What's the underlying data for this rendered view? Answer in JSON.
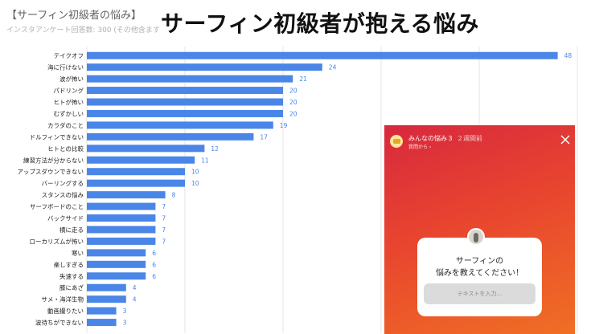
{
  "header": {
    "chart_title": "【サーフィン初級者の悩み】",
    "subtitle": "インスタアンケート回答数: 300 (その他含ます",
    "overlay_title": "サーフィン初級者が抱える悩み"
  },
  "story": {
    "name": "みんなの悩み３",
    "time": "２週間前",
    "from": "質問から ›",
    "question": "サーフィンの\n悩みを教えてください！",
    "answer_placeholder": "テキストを入力..."
  },
  "colors": {
    "bar": "#4a86e8",
    "value_label": "#4a86e8",
    "grid": "#e6e6e6",
    "axis_text": "#666666",
    "category_text": "#222222"
  },
  "chart_data": {
    "type": "bar",
    "orientation": "horizontal",
    "title": "【サーフィン初級者の悩み】",
    "categories": [
      "テイクオフ",
      "海に行けない",
      "波が怖い",
      "パドリング",
      "ヒトが怖い",
      "むずかしい",
      "カラダのこと",
      "ドルフィンできない",
      "ヒトとの比較",
      "練習方法が分からない",
      "アップスダウンできない",
      "バーリングする",
      "スタンスの悩み",
      "サーフボードのこと",
      "バックサイド",
      "横に走る",
      "ローカリズムが怖い",
      "寒い",
      "楽しすぎる",
      "失速する",
      "膝にあざ",
      "サメ・海洋生物",
      "動画撮りたい",
      "波待ちができない"
    ],
    "values": [
      48,
      24,
      21,
      20,
      20,
      20,
      19,
      17,
      12,
      11,
      10,
      10,
      8,
      7,
      7,
      7,
      7,
      6,
      6,
      6,
      4,
      4,
      3,
      3
    ],
    "xlim": [
      0,
      50
    ],
    "xticks": [
      0,
      10,
      20,
      30,
      40,
      50
    ],
    "grid": true,
    "data_labels": true
  }
}
